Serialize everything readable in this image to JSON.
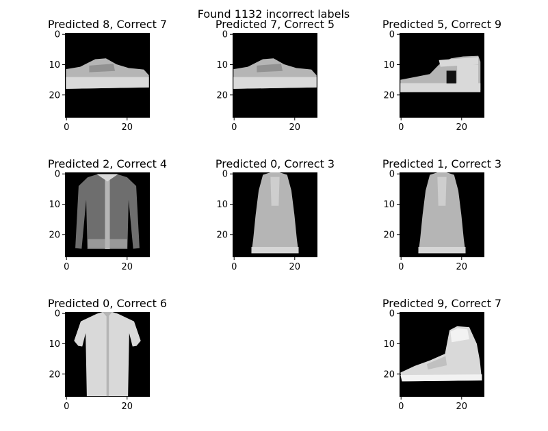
{
  "figure": {
    "suptitle": "Found 1132 incorrect labels",
    "background": "#ffffff",
    "image_color": "#000000"
  },
  "chart_data": [
    {
      "type": "heatmap",
      "title": "Predicted 8, Correct 7",
      "object": "sneaker",
      "image_size": [
        28,
        28
      ],
      "xticks": [
        0,
        20
      ],
      "yticks": [
        0,
        10,
        20
      ]
    },
    {
      "type": "heatmap",
      "title": "Predicted 7, Correct 5",
      "object": "sneaker",
      "image_size": [
        28,
        28
      ],
      "xticks": [
        0,
        20
      ],
      "yticks": [
        0,
        10,
        20
      ]
    },
    {
      "type": "heatmap",
      "title": "Predicted 5, Correct 9",
      "object": "sandal",
      "image_size": [
        28,
        28
      ],
      "xticks": [
        0,
        20
      ],
      "yticks": [
        0,
        10,
        20
      ]
    },
    {
      "type": "heatmap",
      "title": "Predicted 2, Correct 4",
      "object": "coat",
      "image_size": [
        28,
        28
      ],
      "xticks": [
        0,
        20
      ],
      "yticks": [
        0,
        10,
        20
      ]
    },
    {
      "type": "heatmap",
      "title": "Predicted 0, Correct 3",
      "object": "dress",
      "image_size": [
        28,
        28
      ],
      "xticks": [
        0,
        20
      ],
      "yticks": [
        0,
        10,
        20
      ]
    },
    {
      "type": "heatmap",
      "title": "Predicted 1, Correct 3",
      "object": "dress",
      "image_size": [
        28,
        28
      ],
      "xticks": [
        0,
        20
      ],
      "yticks": [
        0,
        10,
        20
      ]
    },
    {
      "type": "heatmap",
      "title": "Predicted 0, Correct 6",
      "object": "shirt",
      "image_size": [
        28,
        28
      ],
      "xticks": [
        0,
        20
      ],
      "yticks": [
        0,
        10,
        20
      ]
    },
    {
      "type": "heatmap",
      "title": "Predicted 9, Correct 7",
      "object": "ankle-boot",
      "image_size": [
        28,
        28
      ],
      "xticks": [
        0,
        20
      ],
      "yticks": [
        0,
        10,
        20
      ]
    }
  ]
}
